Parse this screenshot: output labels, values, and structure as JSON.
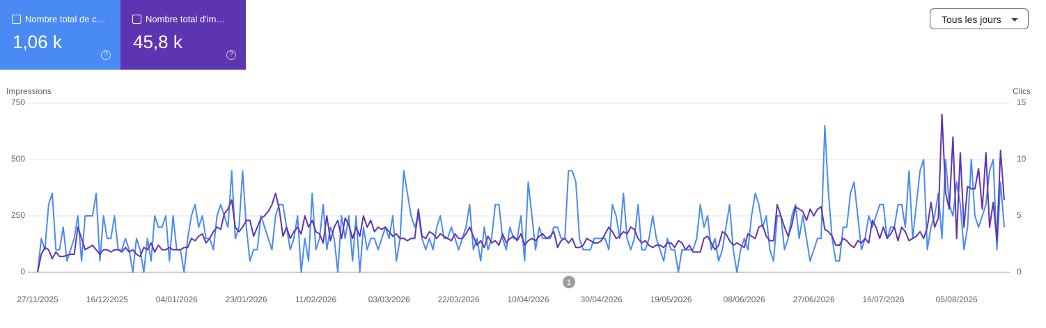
{
  "header": {
    "tiles": [
      {
        "label": "Nombre total de c…",
        "value": "1,06 k",
        "color": "#4a8af4"
      },
      {
        "label": "Nombre total d'im…",
        "value": "45,8 k",
        "color": "#5e35b1"
      }
    ],
    "dropdown": "Tous les jours"
  },
  "chart_data": {
    "type": "line",
    "y_label": "Impressions",
    "y2_label": "Clics",
    "annotation": "1",
    "grid": true,
    "ylim": [
      0,
      750
    ],
    "yticks": [
      0,
      250,
      500,
      750
    ],
    "y2lim": [
      0,
      15
    ],
    "y2ticks": [
      0,
      5,
      10,
      15
    ],
    "categories": [
      "27/11/2025",
      null,
      null,
      null,
      null,
      null,
      null,
      null,
      null,
      null,
      null,
      null,
      null,
      null,
      null,
      null,
      null,
      null,
      null,
      "16/12/2025",
      null,
      null,
      null,
      null,
      null,
      null,
      null,
      null,
      null,
      null,
      null,
      null,
      null,
      null,
      null,
      null,
      null,
      null,
      "04/01/2026",
      null,
      null,
      null,
      null,
      null,
      null,
      null,
      null,
      null,
      null,
      null,
      null,
      null,
      null,
      null,
      null,
      null,
      null,
      "23/01/2026",
      null,
      null,
      null,
      null,
      null,
      null,
      null,
      null,
      null,
      null,
      null,
      null,
      null,
      null,
      null,
      null,
      null,
      null,
      "11/02/2026",
      null,
      null,
      null,
      null,
      null,
      null,
      null,
      null,
      null,
      null,
      null,
      null,
      null,
      null,
      null,
      null,
      null,
      null,
      null,
      "03/03/2026",
      null,
      null,
      null,
      null,
      null,
      null,
      null,
      null,
      null,
      null,
      null,
      null,
      null,
      null,
      null,
      null,
      null,
      null,
      "22/03/2026",
      null,
      null,
      null,
      null,
      null,
      null,
      null,
      null,
      null,
      null,
      null,
      null,
      null,
      null,
      null,
      null,
      null,
      null,
      "10/04/2026",
      null,
      null,
      null,
      null,
      null,
      null,
      null,
      null,
      null,
      null,
      null,
      null,
      null,
      null,
      null,
      null,
      null,
      null,
      null,
      "30/04/2026",
      null,
      null,
      null,
      null,
      null,
      null,
      null,
      null,
      null,
      null,
      null,
      null,
      null,
      null,
      null,
      null,
      null,
      null,
      "19/05/2026",
      null,
      null,
      null,
      null,
      null,
      null,
      null,
      null,
      null,
      null,
      null,
      null,
      null,
      null,
      null,
      null,
      null,
      null,
      null,
      "08/06/2026",
      null,
      null,
      null,
      null,
      null,
      null,
      null,
      null,
      null,
      null,
      null,
      null,
      null,
      null,
      null,
      null,
      null,
      null,
      "27/06/2026",
      null,
      null,
      null,
      null,
      null,
      null,
      null,
      null,
      null,
      null,
      null,
      null,
      null,
      null,
      null,
      null,
      null,
      null,
      "16/07/2026",
      null,
      null,
      null,
      null,
      null,
      null,
      null,
      null,
      null,
      null,
      null,
      null,
      null,
      null,
      null,
      null,
      null,
      null,
      null,
      "05/08/2026",
      null,
      null,
      null,
      null,
      null,
      null,
      null,
      null,
      null,
      null,
      null,
      null,
      null
    ],
    "series": [
      {
        "name": "Nombre total de c…",
        "color": "#4a8af4",
        "axis": "y2",
        "values": [
          0,
          3,
          2,
          6,
          7,
          2,
          2,
          4,
          1,
          2,
          3,
          5,
          1,
          5,
          5,
          5,
          7,
          1,
          5,
          3,
          3,
          5,
          2,
          2,
          3,
          2,
          0,
          3,
          2,
          0,
          3,
          1,
          5,
          4,
          4,
          5,
          1,
          5,
          2,
          2,
          0,
          3,
          5,
          6,
          4,
          5,
          3,
          3,
          2,
          5,
          6,
          5,
          4,
          9,
          3,
          4,
          9,
          4,
          1,
          2,
          2,
          5,
          4,
          3,
          2,
          5,
          6,
          6,
          4,
          2,
          3,
          5,
          0,
          3,
          1,
          7,
          2,
          3,
          6,
          2,
          4,
          3,
          0,
          5,
          3,
          5,
          1,
          5,
          0,
          4,
          2,
          3,
          3,
          2,
          3,
          4,
          3,
          5,
          1,
          3,
          9,
          7,
          5,
          4,
          5,
          3,
          2,
          3,
          2,
          4,
          5,
          3,
          3,
          4,
          3,
          2,
          3,
          4,
          6,
          2,
          3,
          1,
          4,
          2,
          3,
          6,
          6,
          3,
          2,
          4,
          3,
          3,
          5,
          1,
          8,
          5,
          2,
          4,
          3,
          3,
          3,
          4,
          4,
          3,
          3,
          9,
          9,
          8,
          3,
          2,
          2,
          2,
          3,
          3,
          3,
          3,
          2,
          6,
          5,
          3,
          7,
          3,
          2,
          3,
          6,
          2,
          2,
          3,
          5,
          3,
          2,
          1,
          3,
          2,
          2,
          0,
          2,
          2,
          2,
          2,
          3,
          6,
          4,
          5,
          2,
          3,
          1,
          2,
          4,
          6,
          2,
          0,
          2,
          3,
          2,
          5,
          7,
          6,
          4,
          5,
          2,
          1,
          5,
          5,
          2,
          3,
          5,
          6,
          3,
          5,
          3,
          1,
          2,
          3,
          3,
          13,
          7,
          3,
          1,
          1,
          4,
          4,
          7,
          8,
          5,
          2,
          3,
          5,
          4,
          5,
          6,
          6,
          3,
          4,
          4,
          6,
          6,
          4,
          9,
          3,
          6,
          9,
          10,
          2,
          4,
          5,
          7,
          3,
          10,
          6,
          5,
          8,
          6,
          2,
          4,
          10,
          5,
          4,
          5,
          6,
          9,
          10,
          2,
          8,
          4
        ]
      },
      {
        "name": "Nombre total d'im…",
        "color": "#5e35b1",
        "axis": "y",
        "values": [
          0,
          80,
          110,
          100,
          60,
          90,
          70,
          70,
          75,
          80,
          80,
          200,
          150,
          100,
          110,
          120,
          100,
          80,
          100,
          100,
          90,
          100,
          100,
          90,
          110,
          90,
          100,
          80,
          70,
          110,
          100,
          130,
          90,
          120,
          100,
          100,
          110,
          100,
          100,
          100,
          110,
          110,
          150,
          140,
          160,
          170,
          130,
          150,
          180,
          200,
          190,
          260,
          280,
          320,
          200,
          180,
          200,
          230,
          230,
          160,
          200,
          240,
          250,
          270,
          300,
          350,
          280,
          160,
          200,
          150,
          180,
          200,
          170,
          250,
          200,
          230,
          180,
          170,
          130,
          250,
          140,
          200,
          230,
          150,
          240,
          210,
          150,
          200,
          160,
          250,
          200,
          230,
          180,
          200,
          190,
          200,
          180,
          160,
          170,
          150,
          150,
          140,
          150,
          150,
          280,
          160,
          150,
          180,
          170,
          150,
          170,
          160,
          150,
          140,
          170,
          150,
          150,
          170,
          200,
          160,
          120,
          140,
          110,
          160,
          130,
          140,
          120,
          170,
          130,
          150,
          160,
          140,
          170,
          120,
          140,
          150,
          140,
          160,
          170,
          150,
          160,
          180,
          110,
          140,
          150,
          130,
          150,
          110,
          110,
          120,
          150,
          140,
          130,
          130,
          140,
          170,
          200,
          180,
          150,
          160,
          180,
          170,
          200,
          190,
          150,
          130,
          140,
          120,
          110,
          120,
          120,
          110,
          130,
          130,
          110,
          140,
          130,
          100,
          120,
          90,
          90,
          90,
          150,
          160,
          130,
          100,
          120,
          180,
          170,
          140,
          120,
          130,
          120,
          110,
          170,
          160,
          150,
          200,
          210,
          160,
          140,
          140,
          300,
          250,
          200,
          160,
          210,
          290,
          280,
          270,
          230,
          280,
          250,
          280,
          290,
          190,
          180,
          160,
          120,
          120,
          150,
          140,
          120,
          110,
          140,
          130,
          150,
          130,
          230,
          200,
          150,
          200,
          150,
          170,
          200,
          140,
          200,
          180,
          140,
          150,
          160,
          180,
          150,
          200,
          310,
          200,
          240,
          700,
          350,
          280,
          600,
          150,
          530,
          200,
          380,
          370,
          370,
          460,
          280,
          530,
          200,
          310,
          140,
          540,
          320
        ]
      }
    ]
  }
}
